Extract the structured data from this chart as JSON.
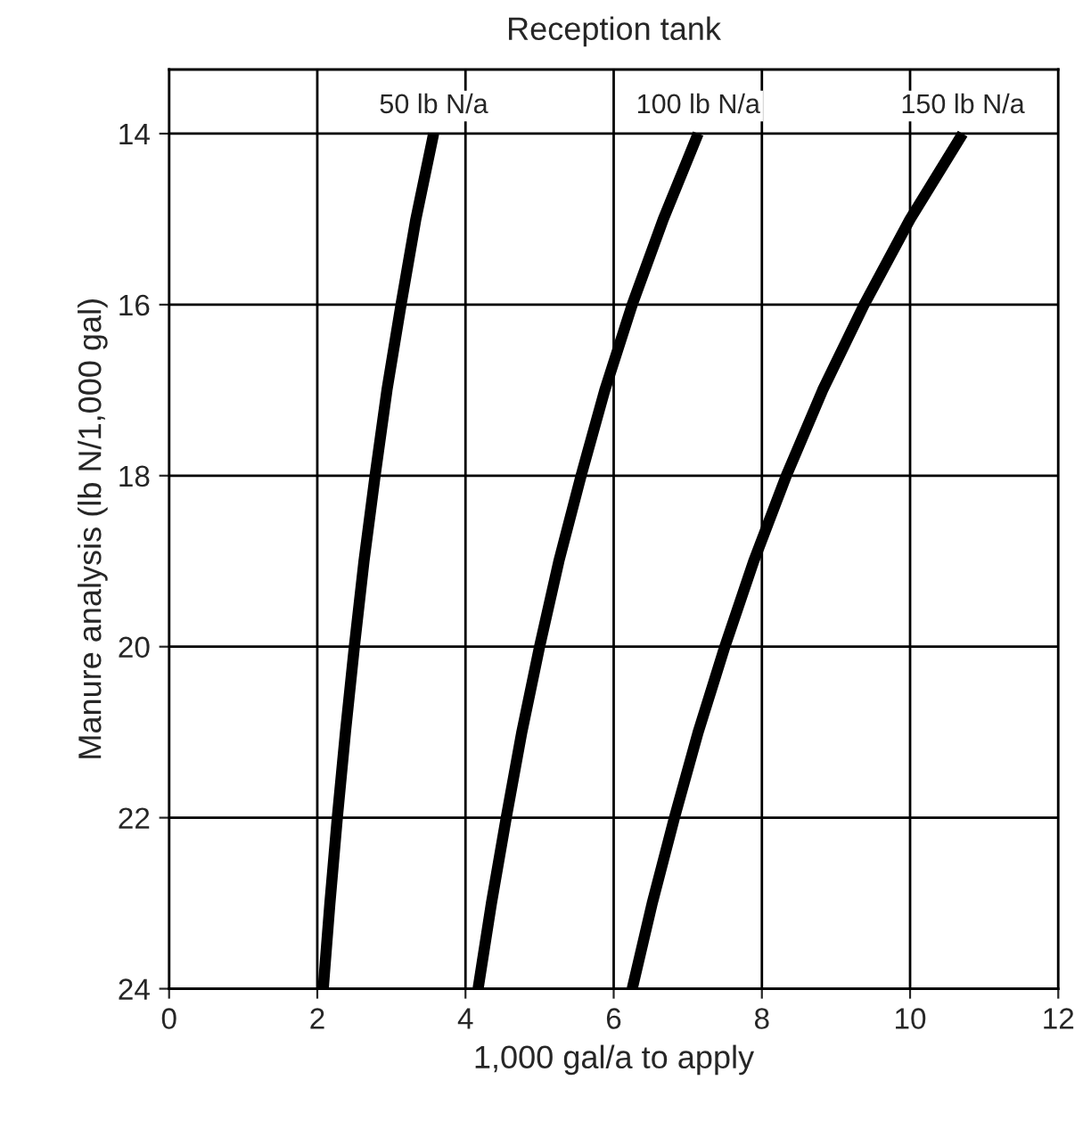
{
  "chart_data": {
    "type": "line",
    "title": "Reception tank",
    "xlabel": "1,000 gal/a to apply",
    "ylabel": "Manure analysis (lb N/1,000 gal)",
    "series": [
      {
        "color": "#000000",
        "x": [
          3.57,
          3.33,
          3.13,
          2.94,
          2.78,
          2.63,
          2.5,
          2.38,
          2.27,
          2.17,
          2.08
        ],
        "values": [
          14,
          15,
          16,
          17,
          18,
          19,
          20,
          21,
          22,
          23,
          24
        ]
      },
      {
        "color": "#000000",
        "x": [
          7.14,
          6.67,
          6.25,
          5.88,
          5.56,
          5.26,
          5.0,
          4.76,
          4.55,
          4.35,
          4.17
        ],
        "values": [
          14,
          15,
          16,
          17,
          18,
          19,
          20,
          21,
          22,
          23,
          24
        ]
      },
      {
        "color": "#000000",
        "x": [
          10.71,
          10.0,
          9.38,
          8.82,
          8.33,
          7.89,
          7.5,
          7.14,
          6.82,
          6.52,
          6.25
        ],
        "values": [
          14,
          15,
          16,
          17,
          18,
          19,
          20,
          21,
          22,
          23,
          24
        ]
      }
    ],
    "annotations": [
      {
        "text": "50 lb N/a",
        "x": 3.57,
        "y": 14
      },
      {
        "text": "100 lb N/a",
        "x": 7.14,
        "y": 14
      },
      {
        "text": "150 lb N/a",
        "x": 10.71,
        "y": 14
      }
    ],
    "xlim": [
      0,
      12
    ],
    "xticks": [
      0,
      2,
      4,
      6,
      8,
      10,
      12
    ],
    "ylim": [
      24,
      13.25
    ],
    "yticks": [
      14,
      16,
      18,
      20,
      22,
      24
    ],
    "grid": true,
    "legend": false,
    "marker": "none",
    "line_style": "solid"
  }
}
